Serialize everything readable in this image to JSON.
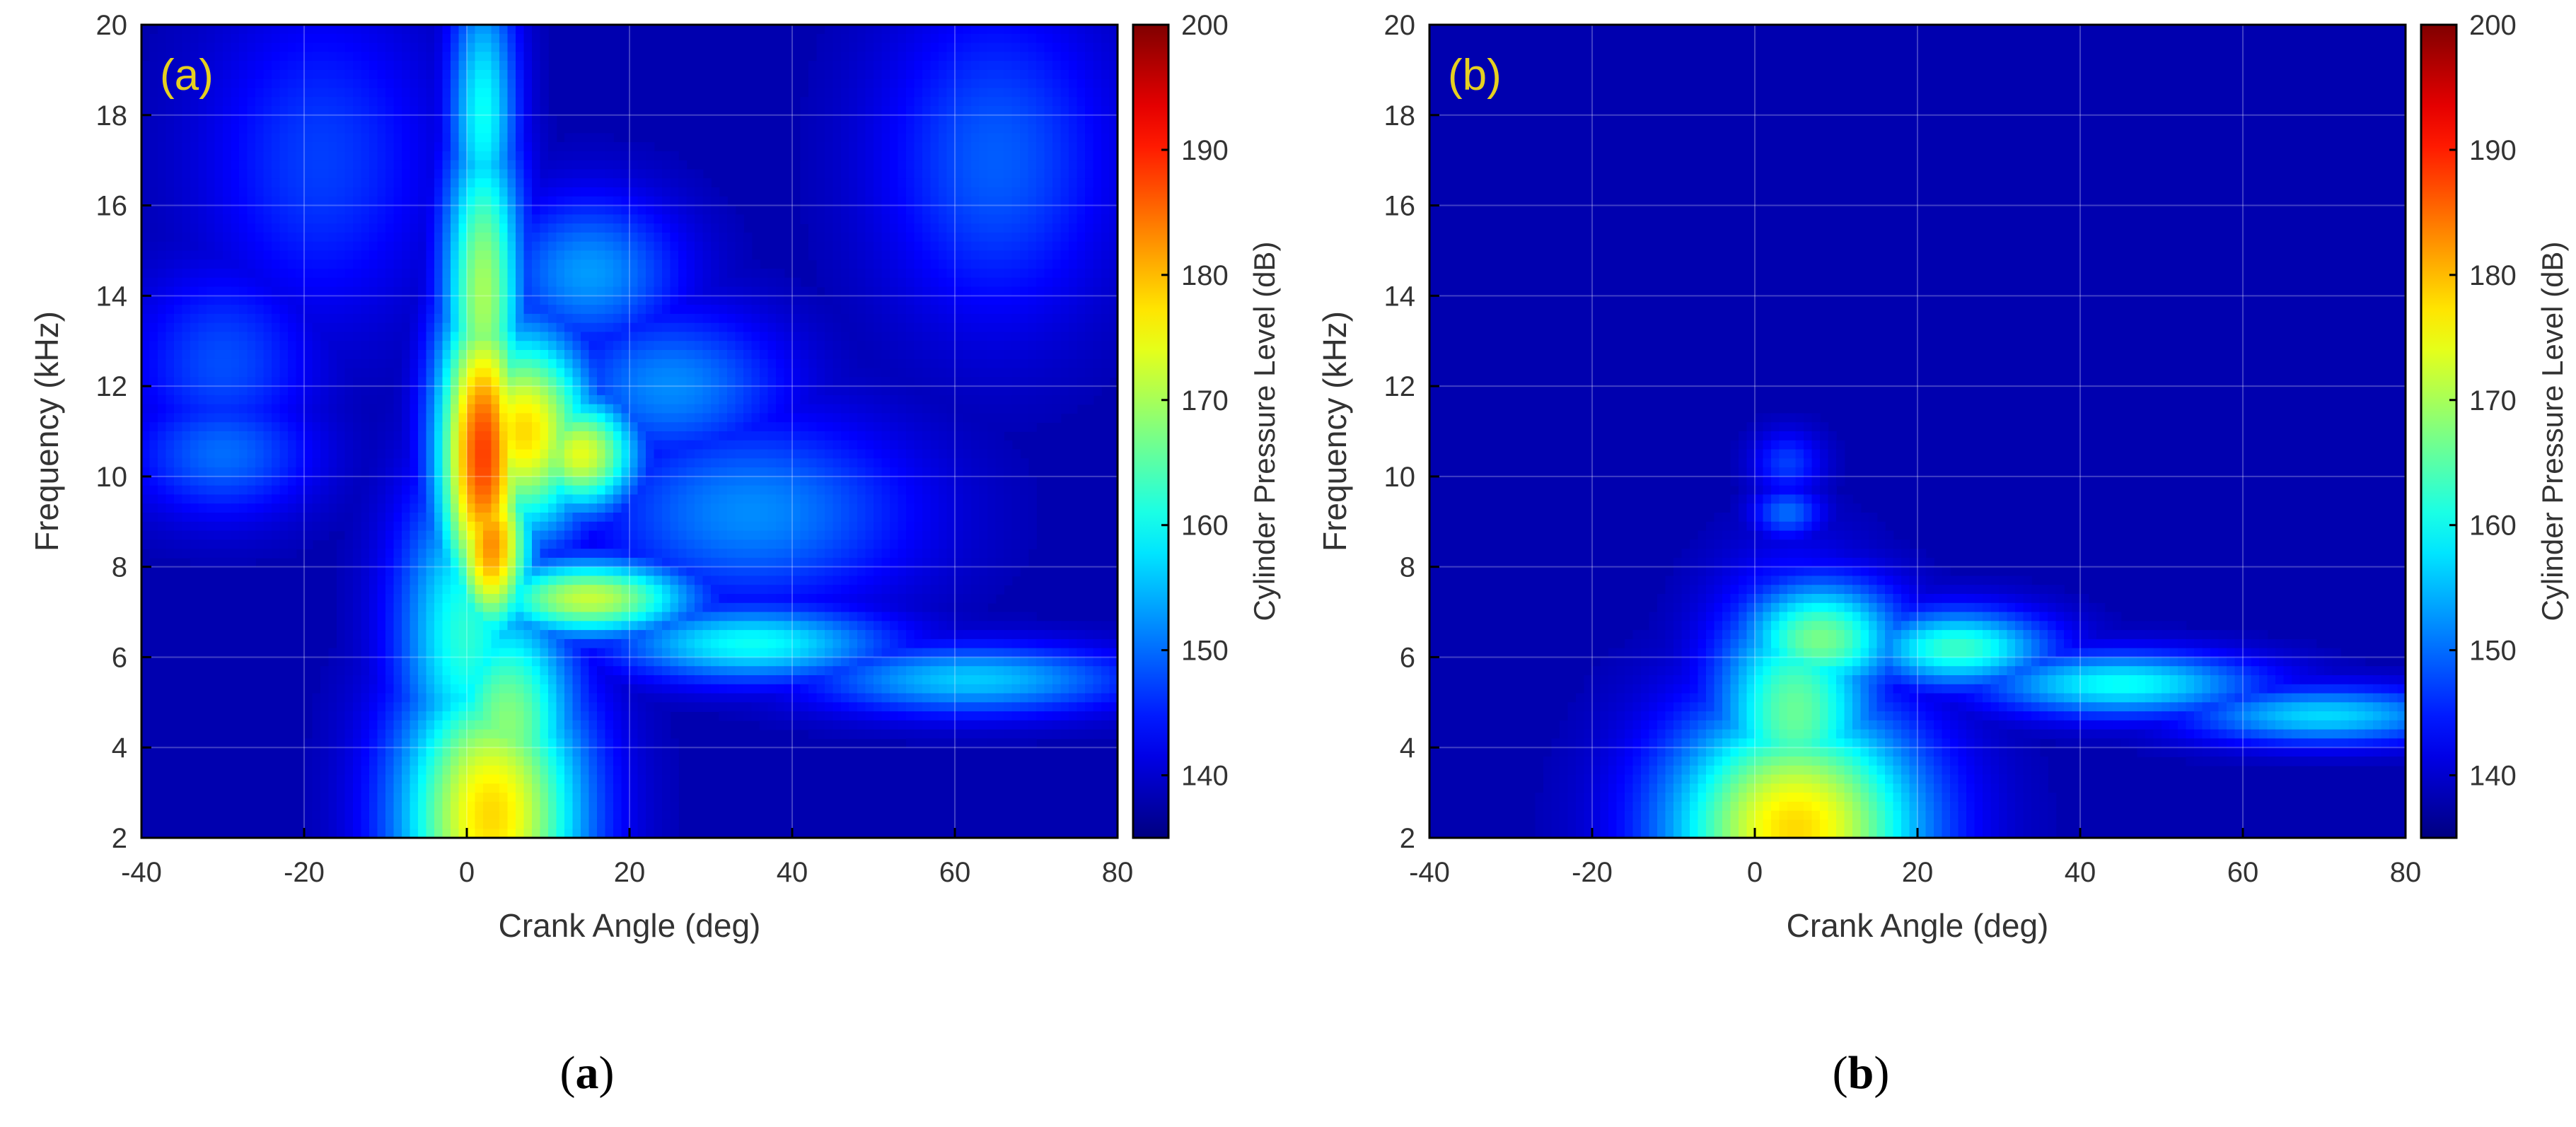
{
  "chart_data": [
    {
      "type": "heatmap",
      "panel_label": "(a)",
      "caption": "a",
      "xlabel": "Crank Angle (deg)",
      "ylabel": "Frequency (kHz)",
      "xlim": [
        -40,
        80
      ],
      "ylim": [
        2,
        20
      ],
      "xticks": [
        "-40",
        "-20",
        "0",
        "20",
        "40",
        "60",
        "80"
      ],
      "yticks": [
        "2",
        "4",
        "6",
        "8",
        "10",
        "12",
        "14",
        "16",
        "18",
        "20"
      ],
      "colorbar": {
        "label": "Cylinder Pressure Level (dB)",
        "range": [
          135,
          200
        ],
        "ticks": [
          "140",
          "150",
          "160",
          "170",
          "180",
          "190",
          "200"
        ],
        "colormap": "jet"
      },
      "background_level_db": 138,
      "features": [
        {
          "x": 3,
          "y": 2.5,
          "sx": 8,
          "sy": 2.4,
          "db": 178
        },
        {
          "x": 5,
          "y": 4.5,
          "sx": 6,
          "sy": 2,
          "db": 168
        },
        {
          "x": 2,
          "y": 10.5,
          "sx": 4,
          "sy": 2.6,
          "db": 188
        },
        {
          "x": 3,
          "y": 8.5,
          "sx": 3.5,
          "sy": 1.5,
          "db": 183
        },
        {
          "x": 7,
          "y": 11,
          "sx": 6,
          "sy": 1.6,
          "db": 178
        },
        {
          "x": 14,
          "y": 10.5,
          "sx": 5,
          "sy": 0.9,
          "db": 174
        },
        {
          "x": 2,
          "y": 14,
          "sx": 3.5,
          "sy": 2.8,
          "db": 170
        },
        {
          "x": 2,
          "y": 18,
          "sx": 3,
          "sy": 2.2,
          "db": 160
        },
        {
          "x": 0,
          "y": 6.5,
          "sx": 6,
          "sy": 2.5,
          "db": 162
        },
        {
          "x": 15,
          "y": 7.3,
          "sx": 9,
          "sy": 0.6,
          "db": 172
        },
        {
          "x": 35,
          "y": 6.3,
          "sx": 12,
          "sy": 0.6,
          "db": 160
        },
        {
          "x": 62,
          "y": 5.5,
          "sx": 14,
          "sy": 0.55,
          "db": 156
        },
        {
          "x": 35,
          "y": 9.2,
          "sx": 14,
          "sy": 1.5,
          "db": 152
        },
        {
          "x": 15,
          "y": 14.5,
          "sx": 8,
          "sy": 1.2,
          "db": 153
        },
        {
          "x": 25,
          "y": 12,
          "sx": 10,
          "sy": 1.2,
          "db": 152
        },
        {
          "x": -30,
          "y": 10.5,
          "sx": 8,
          "sy": 1,
          "db": 150
        },
        {
          "x": -30,
          "y": 12.5,
          "sx": 8,
          "sy": 1.5,
          "db": 148
        },
        {
          "x": 65,
          "y": 17,
          "sx": 10,
          "sy": 2.5,
          "db": 149
        },
        {
          "x": -18,
          "y": 17,
          "sx": 10,
          "sy": 2.5,
          "db": 147
        }
      ]
    },
    {
      "type": "heatmap",
      "panel_label": "(b)",
      "caption": "b",
      "xlabel": "Crank Angle (deg)",
      "ylabel": "Frequency (kHz)",
      "xlim": [
        -40,
        80
      ],
      "ylim": [
        2,
        20
      ],
      "xticks": [
        "-40",
        "-20",
        "0",
        "20",
        "40",
        "60",
        "80"
      ],
      "yticks": [
        "2",
        "4",
        "6",
        "8",
        "10",
        "12",
        "14",
        "16",
        "18",
        "20"
      ],
      "colorbar": {
        "label": "Cylinder Pressure Level (dB)",
        "range": [
          135,
          200
        ],
        "ticks": [
          "140",
          "150",
          "160",
          "170",
          "180",
          "190",
          "200"
        ],
        "colormap": "jet"
      },
      "background_level_db": 138,
      "features": [
        {
          "x": 5,
          "y": 2.2,
          "sx": 11,
          "sy": 1.9,
          "db": 178
        },
        {
          "x": 5,
          "y": 4.8,
          "sx": 7,
          "sy": 1.8,
          "db": 166
        },
        {
          "x": 8,
          "y": 6.4,
          "sx": 7,
          "sy": 0.9,
          "db": 167
        },
        {
          "x": 25,
          "y": 6.2,
          "sx": 8,
          "sy": 0.6,
          "db": 163
        },
        {
          "x": 45,
          "y": 5.4,
          "sx": 12,
          "sy": 0.5,
          "db": 160
        },
        {
          "x": 70,
          "y": 4.7,
          "sx": 12,
          "sy": 0.45,
          "db": 157
        },
        {
          "x": 4,
          "y": 9.2,
          "sx": 3,
          "sy": 0.4,
          "db": 150
        },
        {
          "x": 4,
          "y": 10.3,
          "sx": 3,
          "sy": 0.5,
          "db": 147
        }
      ]
    }
  ]
}
